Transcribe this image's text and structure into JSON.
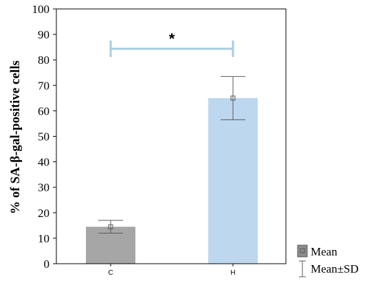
{
  "chart_data": {
    "type": "bar",
    "categories": [
      "C",
      "H"
    ],
    "values": [
      14.5,
      65
    ],
    "sd": [
      2.5,
      8.5
    ],
    "ylabel": "% of SA-β-gal-positive cells",
    "xlabel": "",
    "ylim": [
      0,
      100
    ],
    "yticks": [
      "0",
      "10",
      "20",
      "30",
      "40",
      "50",
      "60",
      "70",
      "80",
      "90",
      "100"
    ],
    "grid": false,
    "bar_colors": [
      "#a6a6a6",
      "#bdd7ee"
    ],
    "significance": {
      "between": [
        "C",
        "H"
      ],
      "label": "*",
      "color": "#a7cce0"
    },
    "legend": {
      "position": "bottom-right",
      "items": [
        {
          "label": "Mean",
          "symbol": "box"
        },
        {
          "label": "Mean±SD",
          "symbol": "whisker"
        }
      ]
    }
  }
}
